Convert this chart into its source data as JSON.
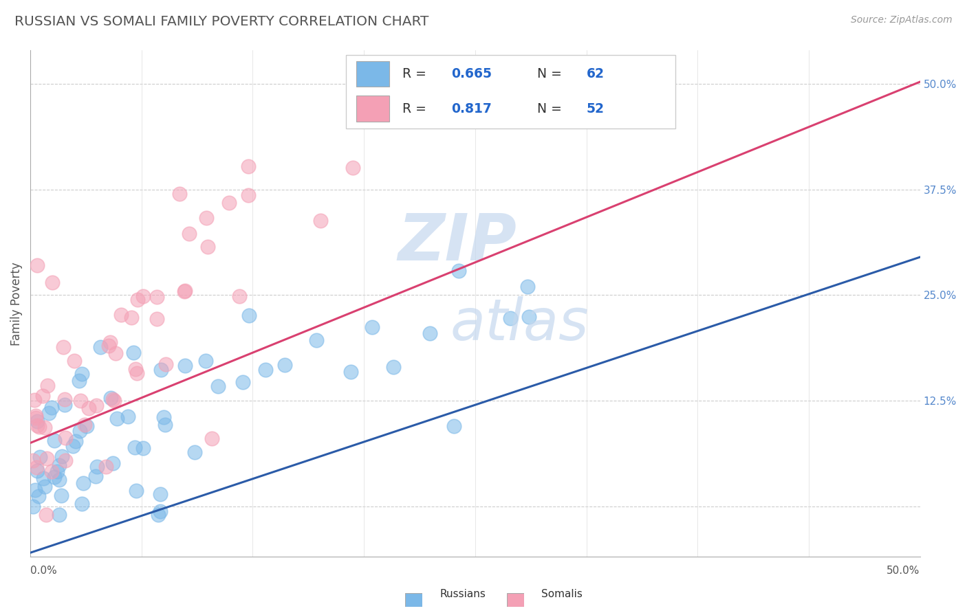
{
  "title": "RUSSIAN VS SOMALI FAMILY POVERTY CORRELATION CHART",
  "source_text": "Source: ZipAtlas.com",
  "ylabel": "Family Poverty",
  "ytick_labels": [
    "",
    "12.5%",
    "25.0%",
    "37.5%",
    "50.0%"
  ],
  "ytick_values": [
    0.0,
    0.125,
    0.25,
    0.375,
    0.5
  ],
  "xlim": [
    0.0,
    0.5
  ],
  "ylim": [
    -0.06,
    0.54
  ],
  "russian_R": 0.665,
  "russian_N": 62,
  "somali_R": 0.817,
  "somali_N": 52,
  "russian_color": "#7BB8E8",
  "somali_color": "#F4A0B5",
  "russian_line_color": "#2B5BA8",
  "somali_line_color": "#D94070",
  "background_color": "#FFFFFF",
  "grid_color": "#CCCCCC",
  "legend_russians": "Russians",
  "legend_somalis": "Somalis",
  "russian_line_intercept": -0.055,
  "russian_line_slope": 0.7,
  "somali_line_intercept": 0.075,
  "somali_line_slope": 0.855
}
